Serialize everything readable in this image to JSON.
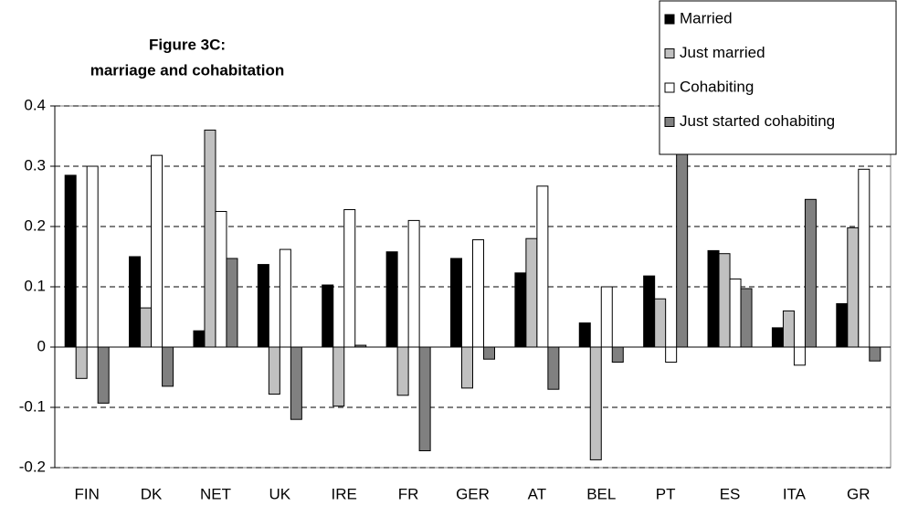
{
  "chart_data": {
    "type": "bar",
    "title": [
      "Figure 3C:",
      "marriage and cohabitation"
    ],
    "categories": [
      "FIN",
      "DK",
      "NET",
      "UK",
      "IRE",
      "FR",
      "GER",
      "AT",
      "BEL",
      "PT",
      "ES",
      "ITA",
      "GR"
    ],
    "series": [
      {
        "name": "Married",
        "color": "#000000",
        "values": [
          0.285,
          0.15,
          0.027,
          0.137,
          0.103,
          0.158,
          0.147,
          0.123,
          0.04,
          0.118,
          0.16,
          0.032,
          0.072
        ]
      },
      {
        "name": "Just married",
        "color": "#c0c0c0",
        "values": [
          -0.052,
          0.065,
          0.36,
          -0.078,
          -0.098,
          -0.08,
          -0.068,
          0.18,
          -0.187,
          0.08,
          0.155,
          0.06,
          0.198
        ]
      },
      {
        "name": "Cohabiting",
        "color": "#ffffff",
        "values": [
          0.3,
          0.318,
          0.225,
          0.162,
          0.228,
          0.21,
          0.178,
          0.267,
          0.1,
          -0.025,
          0.113,
          -0.03,
          0.295
        ]
      },
      {
        "name": "Just started cohabiting",
        "color": "#808080",
        "values": [
          -0.093,
          -0.065,
          0.147,
          -0.12,
          0.003,
          -0.172,
          -0.02,
          -0.07,
          -0.025,
          0.37,
          0.097,
          0.245,
          -0.023
        ]
      }
    ],
    "ylim": [
      -0.2,
      0.4
    ],
    "yticks": [
      -0.2,
      -0.1,
      0,
      0.1,
      0.2,
      0.3,
      0.4
    ],
    "grid": true,
    "legend": "upper right"
  }
}
